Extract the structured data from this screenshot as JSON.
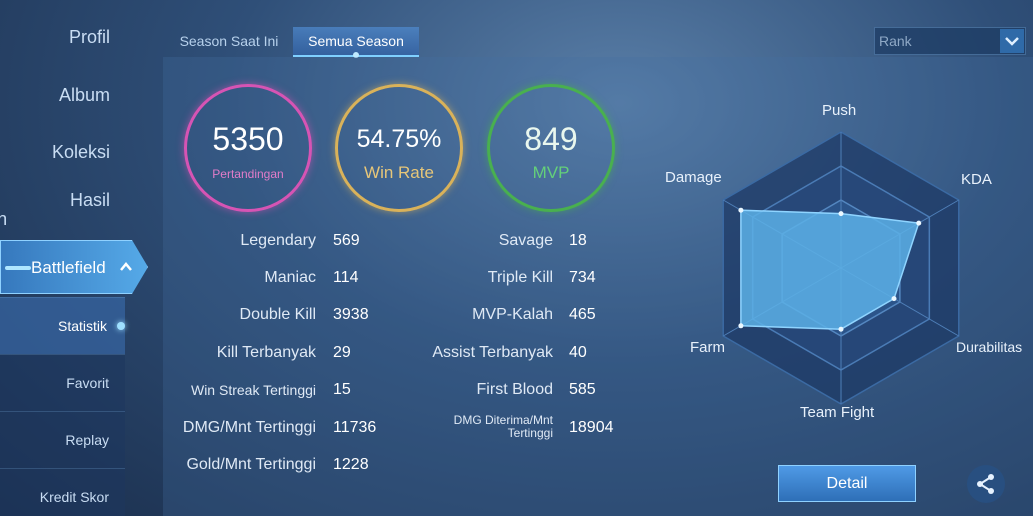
{
  "sidebar": {
    "items": [
      {
        "label": "Profil"
      },
      {
        "label": "Album"
      },
      {
        "label": "Koleksi"
      },
      {
        "label_line1": "Hasil",
        "label_line2": "Pertandingan"
      }
    ],
    "battlefield": {
      "label": "Battlefield"
    },
    "subitems": [
      {
        "label": "Statistik"
      },
      {
        "label": "Favorit"
      },
      {
        "label": "Replay"
      },
      {
        "label": "Kredit Skor"
      }
    ]
  },
  "tabs": [
    {
      "label": "Season Saat Ini"
    },
    {
      "label": "Semua Season"
    }
  ],
  "rank_select": {
    "value": "Rank"
  },
  "summary": {
    "matches": {
      "value": "5350",
      "label": "Pertandingan",
      "color": "#d654b4"
    },
    "win_rate": {
      "value": "54.75%",
      "label": "Win Rate",
      "color": "#d9b25a"
    },
    "mvp": {
      "value": "849",
      "label": "MVP",
      "color": "#49b04f"
    }
  },
  "stats_left": [
    {
      "label": "Legendary",
      "value": "569"
    },
    {
      "label": "Maniac",
      "value": "114"
    },
    {
      "label": "Double Kill",
      "value": "3938"
    },
    {
      "label": "Kill Terbanyak",
      "value": "29"
    },
    {
      "label": "Win Streak Tertinggi",
      "value": "15"
    },
    {
      "label": "DMG/Mnt Tertinggi",
      "value": "11736"
    },
    {
      "label": "Gold/Mnt Tertinggi",
      "value": "1228"
    }
  ],
  "stats_right": [
    {
      "label": "Savage",
      "value": "18"
    },
    {
      "label": "Triple Kill",
      "value": "734"
    },
    {
      "label": "MVP-Kalah",
      "value": "465"
    },
    {
      "label": "Assist Terbanyak",
      "value": "40"
    },
    {
      "label": "First Blood",
      "value": "585"
    },
    {
      "label_line1": "DMG Diterima/Mnt",
      "label_line2": "Tertinggi",
      "value": "18904"
    }
  ],
  "radar": {
    "axes": [
      "Push",
      "KDA",
      "Durabilitas",
      "Team Fight",
      "Farm",
      "Damage"
    ],
    "levels": [
      0.4,
      0.66,
      0.45,
      0.45,
      0.85,
      0.85
    ],
    "fill_color": "#5cb0e6"
  },
  "buttons": {
    "detail": "Detail"
  },
  "icons": {
    "share": "share-icon",
    "chevron": "chevron-up-icon",
    "dropdown": "chevron-down-icon"
  }
}
